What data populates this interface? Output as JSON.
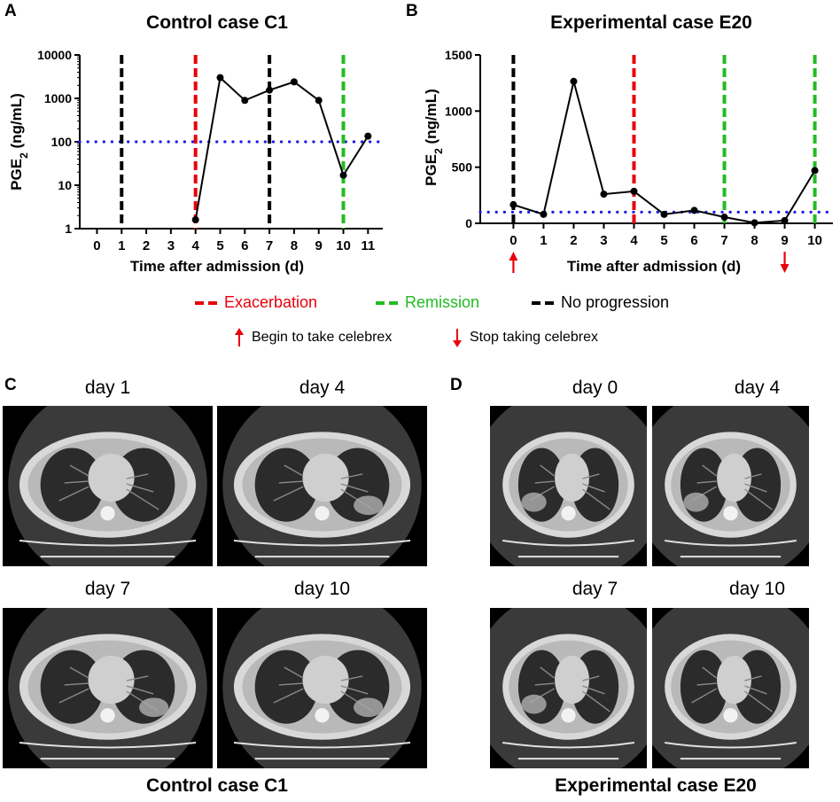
{
  "panels": {
    "A": "A",
    "B": "B",
    "C": "C",
    "D": "D"
  },
  "legend": {
    "exacerbation": "Exacerbation",
    "remission": "Remission",
    "no_progression": "No progression",
    "begin": "Begin to take celebrex",
    "stop": "Stop taking celebrex"
  },
  "colors": {
    "exacerbation": "#e8000b",
    "remission": "#22bb22",
    "no_progression": "#000000",
    "threshold": "#1a1ae6",
    "arrow": "#e8000b"
  },
  "chart_data": [
    {
      "type": "line",
      "title": "Control case C1",
      "xlabel": "Time after admission (d)",
      "ylabel": "PGE₂ (ng/mL)",
      "yscale": "log",
      "ylim": [
        1,
        10000
      ],
      "yticks": [
        1,
        10,
        100,
        1000,
        10000
      ],
      "xlim": [
        -0.7,
        11.6
      ],
      "xticks": [
        0,
        1,
        2,
        3,
        4,
        5,
        6,
        7,
        8,
        9,
        10,
        11
      ],
      "series": [
        {
          "name": "PGE2",
          "x": [
            4,
            5,
            6,
            7,
            8,
            9,
            10,
            11
          ],
          "y": [
            1.6,
            3000,
            900,
            1550,
            2400,
            900,
            17,
            135
          ]
        }
      ],
      "threshold": 100,
      "vlines": [
        {
          "x": 1,
          "kind": "no_progression"
        },
        {
          "x": 4,
          "kind": "exacerbation"
        },
        {
          "x": 7,
          "kind": "no_progression"
        },
        {
          "x": 10,
          "kind": "remission"
        }
      ],
      "arrows": []
    },
    {
      "type": "line",
      "title": "Experimental case E20",
      "xlabel": "Time after admission (d)",
      "ylabel": "PGE₂ (ng/mL)",
      "yscale": "linear",
      "ylim": [
        0,
        1500
      ],
      "yticks": [
        0,
        500,
        1000,
        1500
      ],
      "xlim": [
        -1.1,
        10.6
      ],
      "xticks": [
        0,
        1,
        2,
        3,
        4,
        5,
        6,
        7,
        8,
        9,
        10
      ],
      "series": [
        {
          "name": "PGE2",
          "x": [
            0,
            1,
            2,
            3,
            4,
            5,
            6,
            7,
            8,
            9,
            10
          ],
          "y": [
            165,
            80,
            1265,
            260,
            285,
            80,
            115,
            55,
            5,
            25,
            470
          ]
        }
      ],
      "threshold": 100,
      "vlines": [
        {
          "x": 0,
          "kind": "no_progression"
        },
        {
          "x": 4,
          "kind": "exacerbation"
        },
        {
          "x": 7,
          "kind": "remission"
        },
        {
          "x": 10,
          "kind": "remission"
        }
      ],
      "arrows": [
        {
          "x": 0,
          "direction": "up"
        },
        {
          "x": 9,
          "direction": "down"
        }
      ]
    }
  ],
  "ct": {
    "control": {
      "caption": "Control case C1",
      "images": [
        {
          "label": "day 1",
          "lesion": "none"
        },
        {
          "label": "day 4",
          "lesion": "right"
        },
        {
          "label": "day 7",
          "lesion": "right"
        },
        {
          "label": "day 10",
          "lesion": "right"
        }
      ]
    },
    "experimental": {
      "caption": "Experimental case E20",
      "images": [
        {
          "label": "day 0",
          "lesion": "left"
        },
        {
          "label": "day 4",
          "lesion": "left"
        },
        {
          "label": "day 7",
          "lesion": "left"
        },
        {
          "label": "day 10",
          "lesion": "none"
        }
      ]
    }
  }
}
